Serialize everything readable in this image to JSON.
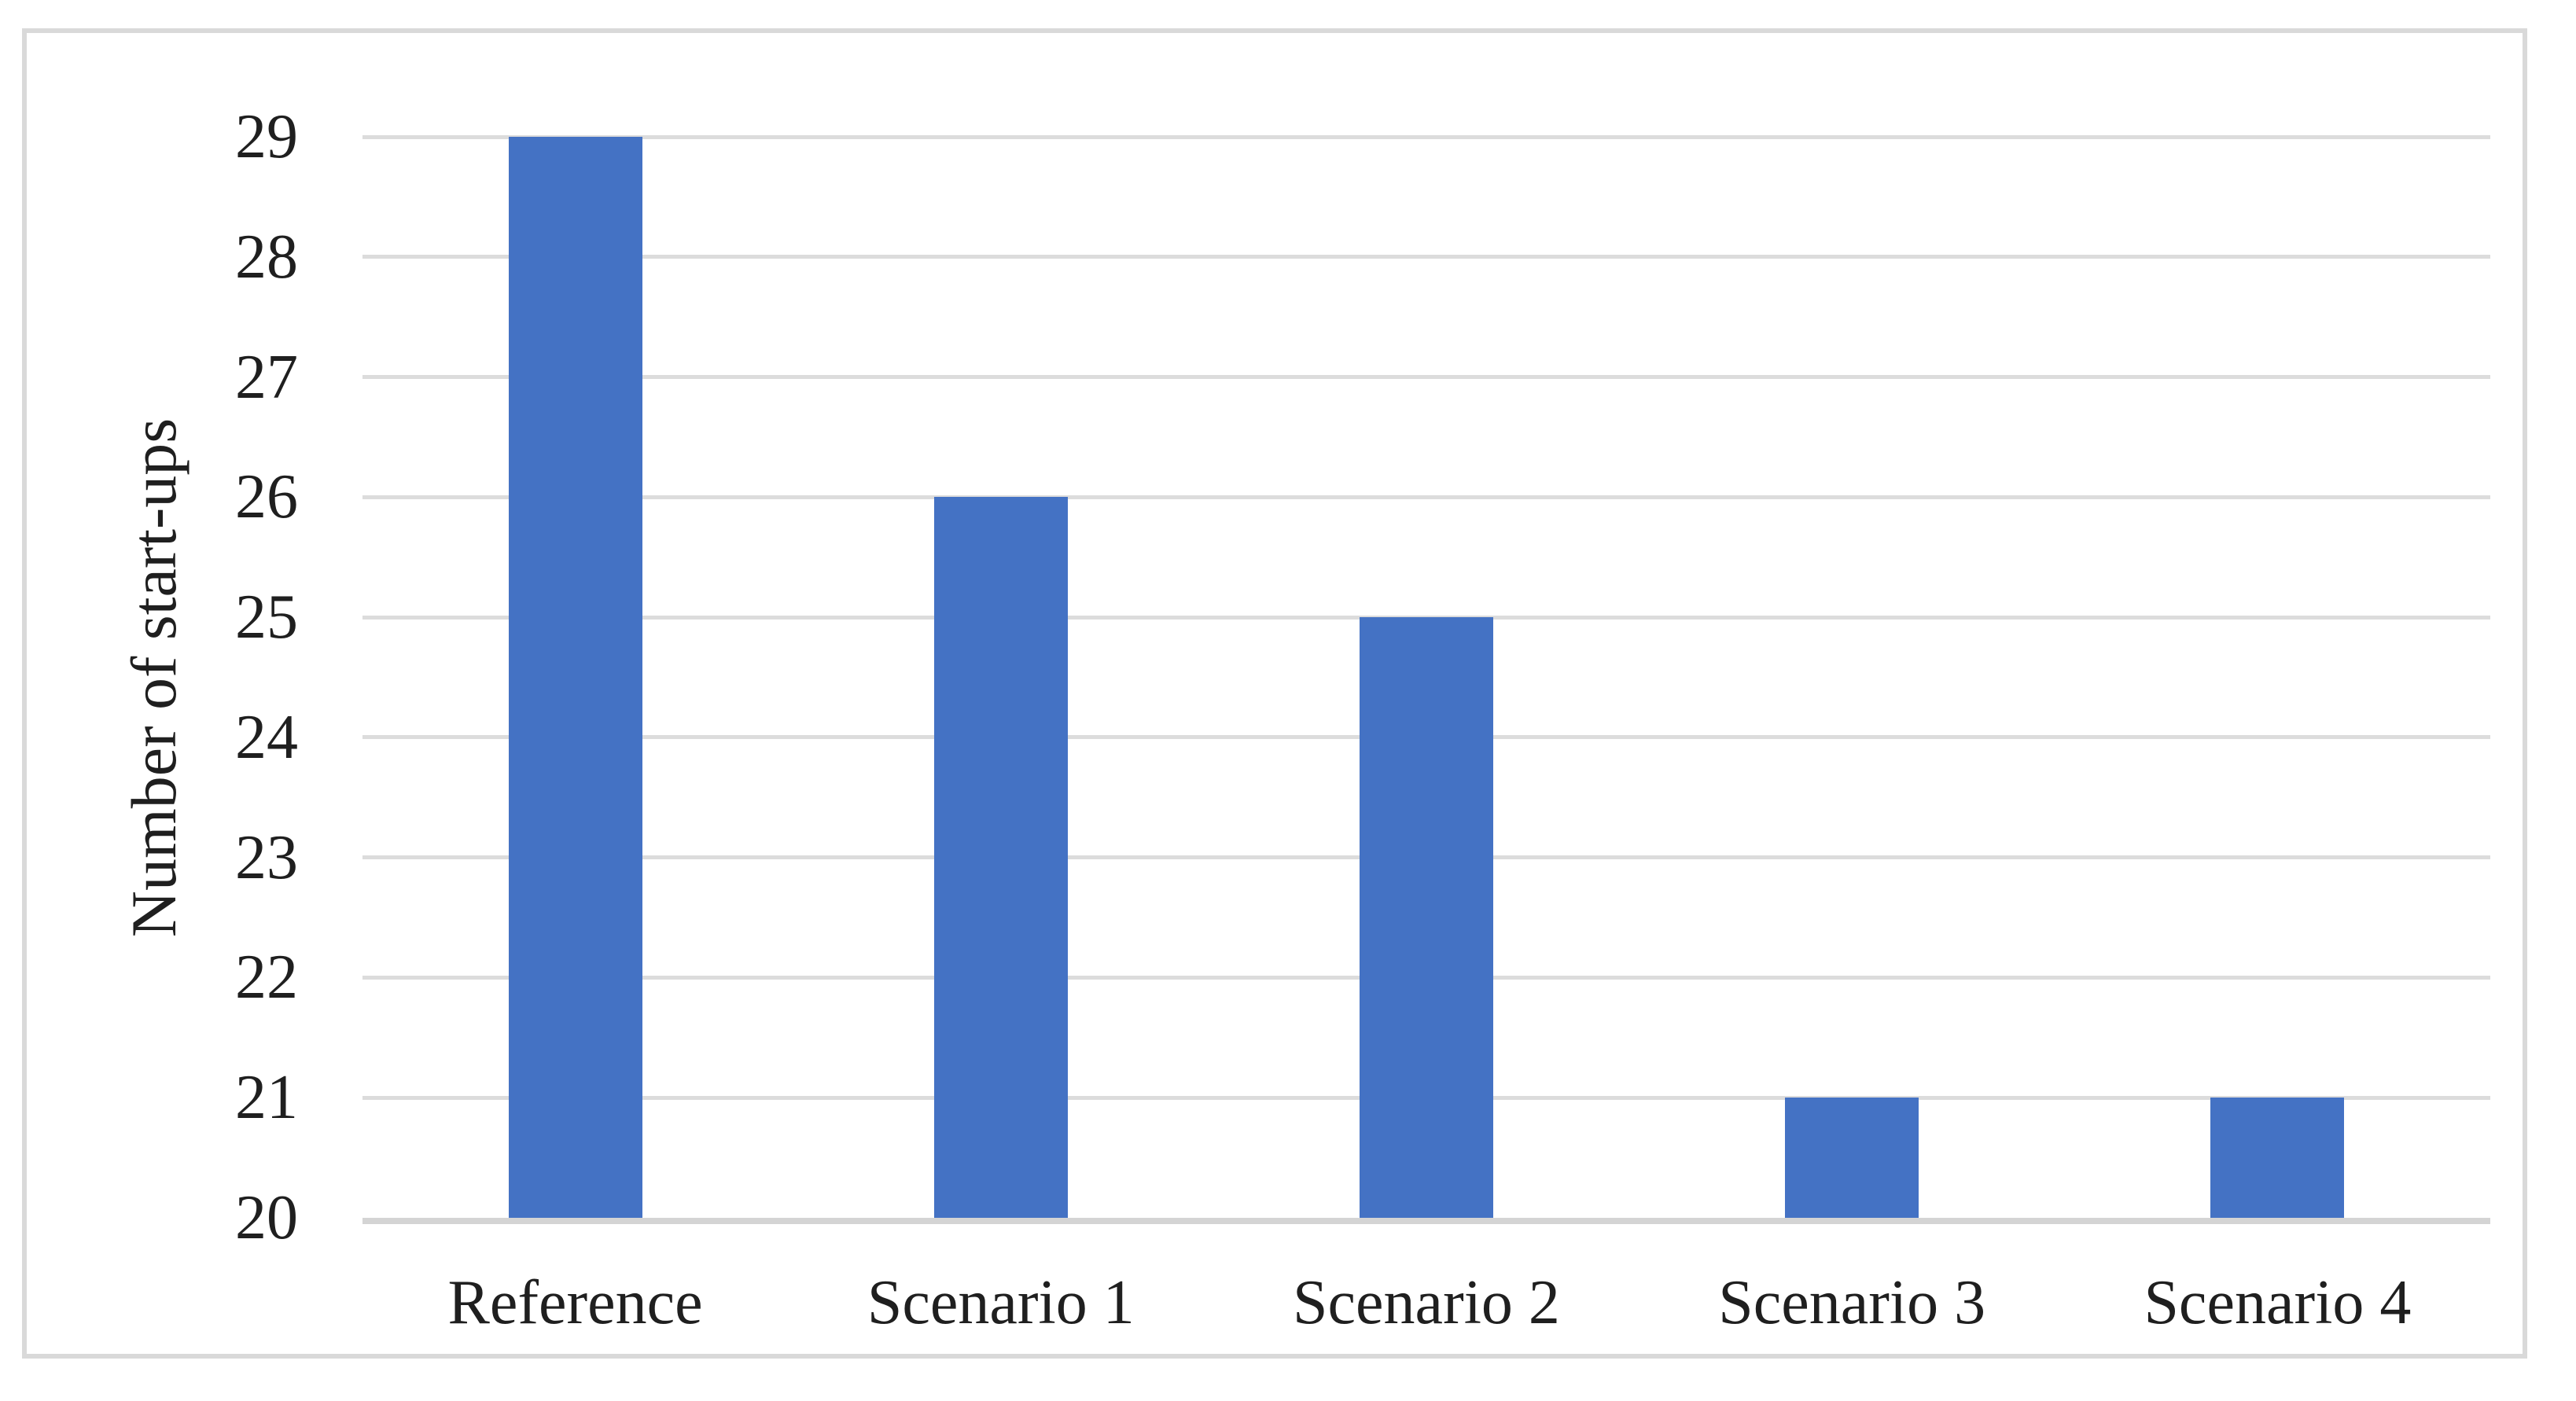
{
  "figure": {
    "background": "#ffffff",
    "frame_border_color": "#d9d9d9"
  },
  "chart_data": {
    "type": "bar",
    "title": "",
    "categories": [
      "Reference",
      "Scenario 1",
      "Scenario 2",
      "Scenario 3",
      "Scenario 4"
    ],
    "values": [
      29,
      26,
      25,
      21,
      21
    ],
    "xlabel": "",
    "ylabel": "Number of start-ups",
    "ylim": [
      20,
      29
    ],
    "yticks": [
      20,
      21,
      22,
      23,
      24,
      25,
      26,
      27,
      28,
      29
    ],
    "grid": "horizontal gridlines on",
    "legend": "none",
    "bar_color": "#4472c4",
    "gridline_color": "#dcdcdc",
    "axis_line_color": "#d4d4d4",
    "text_color": "#1f1f1f"
  }
}
